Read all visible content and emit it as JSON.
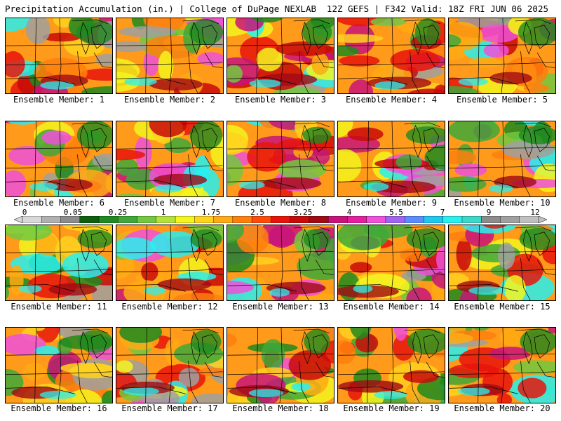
{
  "header": {
    "title_left": "Precipitation Accumulation (in.) | College of DuPage NEXLAB",
    "title_right": "12Z GEFS | F342 Valid: 18Z FRI JUN 06 2025"
  },
  "members": [
    {
      "label": "Ensemble Member: 1"
    },
    {
      "label": "Ensemble Member: 2"
    },
    {
      "label": "Ensemble Member: 3"
    },
    {
      "label": "Ensemble Member: 4"
    },
    {
      "label": "Ensemble Member: 5"
    },
    {
      "label": "Ensemble Member: 6"
    },
    {
      "label": "Ensemble Member: 7"
    },
    {
      "label": "Ensemble Member: 8"
    },
    {
      "label": "Ensemble Member: 9"
    },
    {
      "label": "Ensemble Member: 10"
    },
    {
      "label": "Ensemble Member: 11"
    },
    {
      "label": "Ensemble Member: 12"
    },
    {
      "label": "Ensemble Member: 13"
    },
    {
      "label": "Ensemble Member: 14"
    },
    {
      "label": "Ensemble Member: 15"
    },
    {
      "label": "Ensemble Member: 16"
    },
    {
      "label": "Ensemble Member: 17"
    },
    {
      "label": "Ensemble Member: 18"
    },
    {
      "label": "Ensemble Member: 19"
    },
    {
      "label": "Ensemble Member: 20"
    }
  ],
  "colorbar": {
    "tick_labels": [
      "0",
      "0.05",
      "0.25",
      "1",
      "1.75",
      "2.5",
      "3.25",
      "4",
      "5.5",
      "7",
      "9",
      "12"
    ],
    "colors": [
      "#d8d8d8",
      "#b0b0b0",
      "#8c8c8c",
      "#0d5f0d",
      "#1f8a1f",
      "#3fa83a",
      "#72c83f",
      "#b5e23a",
      "#f5f51e",
      "#ffd21e",
      "#ffaa14",
      "#ff7f0e",
      "#ff4a0a",
      "#e8140c",
      "#c80a0a",
      "#a00a14",
      "#c8147a",
      "#e61ea0",
      "#f050dc",
      "#a064f0",
      "#5a8cff",
      "#1ec8f0",
      "#28f0f0",
      "#3cd7c8",
      "#8c8c8c",
      "#a0a0a0",
      "#c0c0c0"
    ]
  }
}
